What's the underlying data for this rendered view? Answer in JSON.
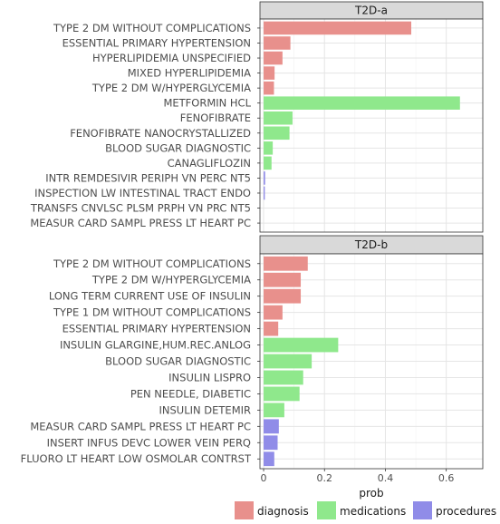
{
  "chart_data": {
    "type": "bar",
    "orientation": "horizontal",
    "xlabel": "prob",
    "xlim": [
      -0.012,
      0.72
    ],
    "xticks": [
      0,
      0.2,
      0.4,
      0.6
    ],
    "xtick_labels": [
      "0",
      "0.2",
      "0.4",
      "0.6"
    ],
    "grid": true,
    "legend_position": "bottom",
    "legend": [
      {
        "name": "diagnosis",
        "color": "#e8908c"
      },
      {
        "name": "medications",
        "color": "#8fe88c"
      },
      {
        "name": "procedures",
        "color": "#908ce8"
      }
    ],
    "panels": [
      {
        "title": "T2D-a",
        "bars": [
          {
            "label": "TYPE 2 DM WITHOUT COMPLICATIONS",
            "value": 0.485,
            "group": "diagnosis"
          },
          {
            "label": "ESSENTIAL PRIMARY HYPERTENSION",
            "value": 0.088,
            "group": "diagnosis"
          },
          {
            "label": "HYPERLIPIDEMIA UNSPECIFIED",
            "value": 0.062,
            "group": "diagnosis"
          },
          {
            "label": "MIXED HYPERLIPIDEMIA",
            "value": 0.036,
            "group": "diagnosis"
          },
          {
            "label": "TYPE 2 DM W/HYPERGLYCEMIA",
            "value": 0.034,
            "group": "diagnosis"
          },
          {
            "label": "METFORMIN HCL",
            "value": 0.645,
            "group": "medications"
          },
          {
            "label": "FENOFIBRATE",
            "value": 0.095,
            "group": "medications"
          },
          {
            "label": "FENOFIBRATE NANOCRYSTALLIZED",
            "value": 0.085,
            "group": "medications"
          },
          {
            "label": "BLOOD SUGAR DIAGNOSTIC",
            "value": 0.03,
            "group": "medications"
          },
          {
            "label": "CANAGLIFLOZIN",
            "value": 0.026,
            "group": "medications"
          },
          {
            "label": "INTR REMDESIVIR PERIPH VN PERC NT5",
            "value": 0.005,
            "group": "procedures"
          },
          {
            "label": "INSPECTION LW INTESTINAL TRACT ENDO",
            "value": 0.004,
            "group": "procedures"
          },
          {
            "label": "TRANSFS CNVLSC PLSM PRPH VN PRC NT5",
            "value": 0.0,
            "group": "procedures"
          },
          {
            "label": "MEASUR CARD SAMPL PRESS LT HEART PC",
            "value": 0.0,
            "group": "procedures"
          }
        ]
      },
      {
        "title": "T2D-b",
        "bars": [
          {
            "label": "TYPE 2 DM WITHOUT COMPLICATIONS",
            "value": 0.145,
            "group": "diagnosis"
          },
          {
            "label": "TYPE 2 DM W/HYPERGLYCEMIA",
            "value": 0.122,
            "group": "diagnosis"
          },
          {
            "label": "LONG TERM CURRENT USE OF INSULIN",
            "value": 0.122,
            "group": "diagnosis"
          },
          {
            "label": "TYPE 1 DM WITHOUT COMPLICATIONS",
            "value": 0.062,
            "group": "diagnosis"
          },
          {
            "label": "ESSENTIAL PRIMARY HYPERTENSION",
            "value": 0.048,
            "group": "diagnosis"
          },
          {
            "label": "INSULIN GLARGINE,HUM.REC.ANLOG",
            "value": 0.245,
            "group": "medications"
          },
          {
            "label": "BLOOD SUGAR DIAGNOSTIC",
            "value": 0.158,
            "group": "medications"
          },
          {
            "label": "INSULIN LISPRO",
            "value": 0.13,
            "group": "medications"
          },
          {
            "label": "PEN NEEDLE, DIABETIC",
            "value": 0.118,
            "group": "medications"
          },
          {
            "label": "INSULIN DETEMIR",
            "value": 0.068,
            "group": "medications"
          },
          {
            "label": "MEASUR CARD SAMPL PRESS LT HEART PC",
            "value": 0.05,
            "group": "procedures"
          },
          {
            "label": "INSERT INFUS DEVC LOWER VEIN PERQ",
            "value": 0.046,
            "group": "procedures"
          },
          {
            "label": "FLUORO LT HEART LOW OSMOLAR CONTRST",
            "value": 0.035,
            "group": "procedures"
          }
        ]
      }
    ]
  }
}
